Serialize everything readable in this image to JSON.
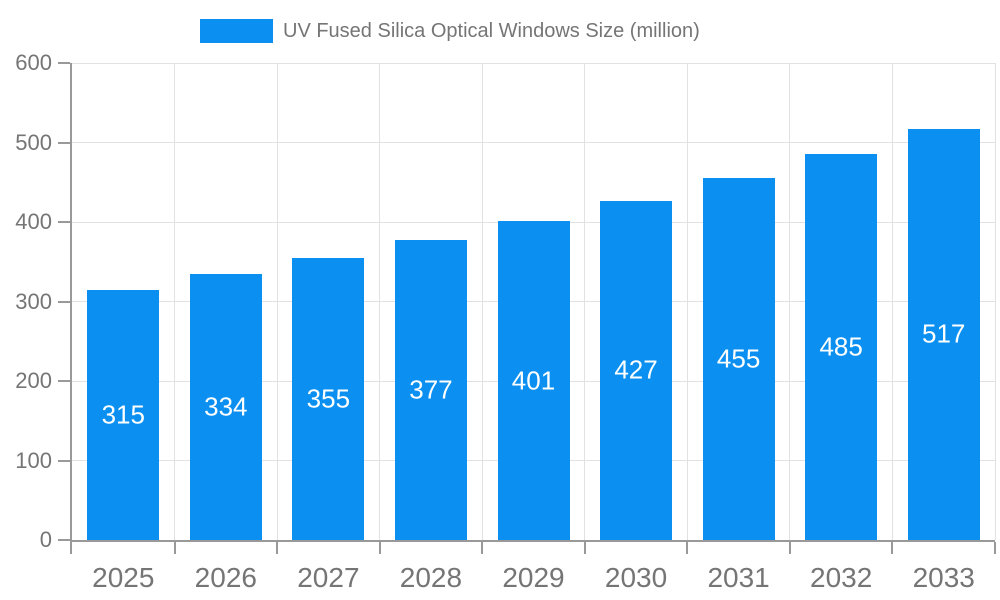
{
  "legend": {
    "label": "UV Fused Silica Optical Windows Size (million)"
  },
  "chart_data": {
    "type": "bar",
    "title": "UV Fused Silica Optical Windows Size (million)",
    "categories": [
      "2025",
      "2026",
      "2027",
      "2028",
      "2029",
      "2030",
      "2031",
      "2032",
      "2033"
    ],
    "values": [
      315,
      334,
      355,
      377,
      401,
      427,
      455,
      485,
      517
    ],
    "xlabel": "",
    "ylabel": "",
    "ylim": [
      0,
      600
    ],
    "yticks": [
      0,
      100,
      200,
      300,
      400,
      500,
      600
    ],
    "grid": true,
    "legend_position": "top",
    "value_labels": "inside-center",
    "colors": {
      "bar": "#0B90F2",
      "value_label": "#FFFFFF",
      "axis": "#999999",
      "grid": "#E2E2E2",
      "tick_label": "#757575",
      "legend_text": "#757575",
      "background": "#FFFFFF"
    }
  }
}
